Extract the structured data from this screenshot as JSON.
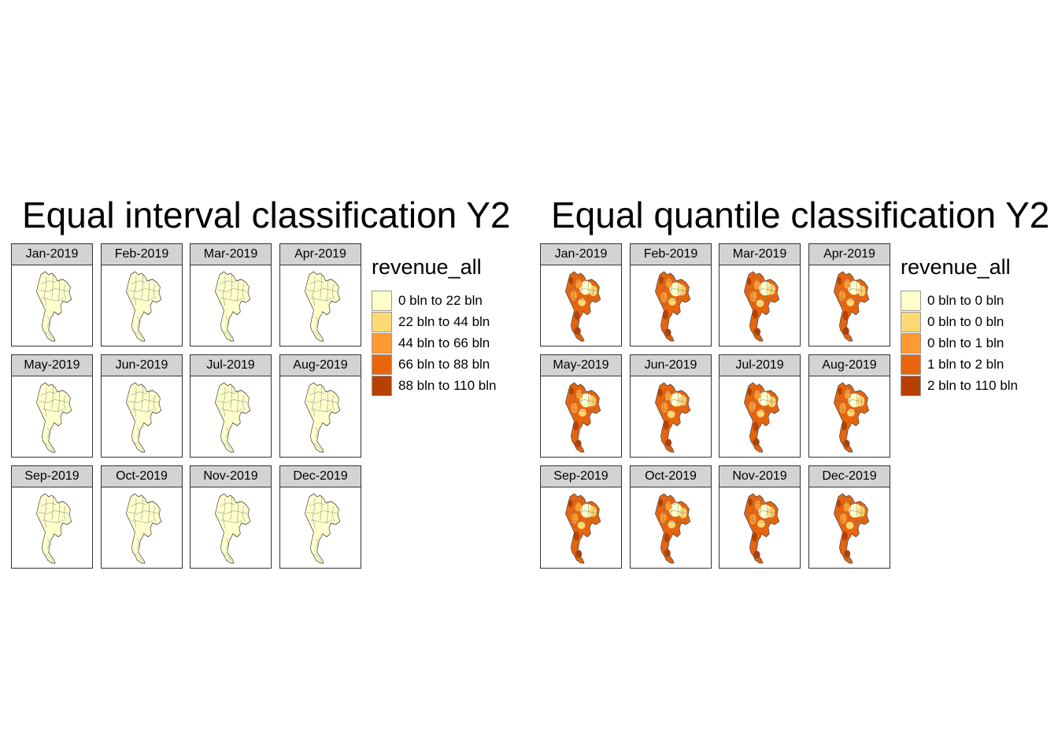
{
  "panels": [
    {
      "title": "Equal interval classification Y2",
      "legend": {
        "title": "revenue_all",
        "items": [
          {
            "label": "0 bln to 22 bln",
            "color": "#ffffcc"
          },
          {
            "label": "22 bln to 44 bln",
            "color": "#fed976"
          },
          {
            "label": "44 bln to 66 bln",
            "color": "#fd9b32"
          },
          {
            "label": "66 bln to 88 bln",
            "color": "#e8650d"
          },
          {
            "label": "88 bln to 110 bln",
            "color": "#b84000"
          }
        ]
      },
      "facets": [
        "Jan-2019",
        "Feb-2019",
        "Mar-2019",
        "Apr-2019",
        "May-2019",
        "Jun-2019",
        "Jul-2019",
        "Aug-2019",
        "Sep-2019",
        "Oct-2019",
        "Nov-2019",
        "Dec-2019"
      ],
      "map_fill": "dominant lowest class (0 bln to 22 bln)"
    },
    {
      "title": "Equal quantile classification Y2",
      "legend": {
        "title": "revenue_all",
        "items": [
          {
            "label": "0 bln to 0 bln",
            "color": "#ffffcc"
          },
          {
            "label": "0 bln to 0 bln",
            "color": "#fed976"
          },
          {
            "label": "0 bln to 1 bln",
            "color": "#fd9b32"
          },
          {
            "label": "1 bln to 2 bln",
            "color": "#e8650d"
          },
          {
            "label": "2 bln to 110 bln",
            "color": "#b84000"
          }
        ]
      },
      "facets": [
        "Jan-2019",
        "Feb-2019",
        "Mar-2019",
        "Apr-2019",
        "May-2019",
        "Jun-2019",
        "Jul-2019",
        "Aug-2019",
        "Sep-2019",
        "Oct-2019",
        "Nov-2019",
        "Dec-2019"
      ],
      "map_fill": "mixed classes, mostly orange to dark orange"
    }
  ]
}
